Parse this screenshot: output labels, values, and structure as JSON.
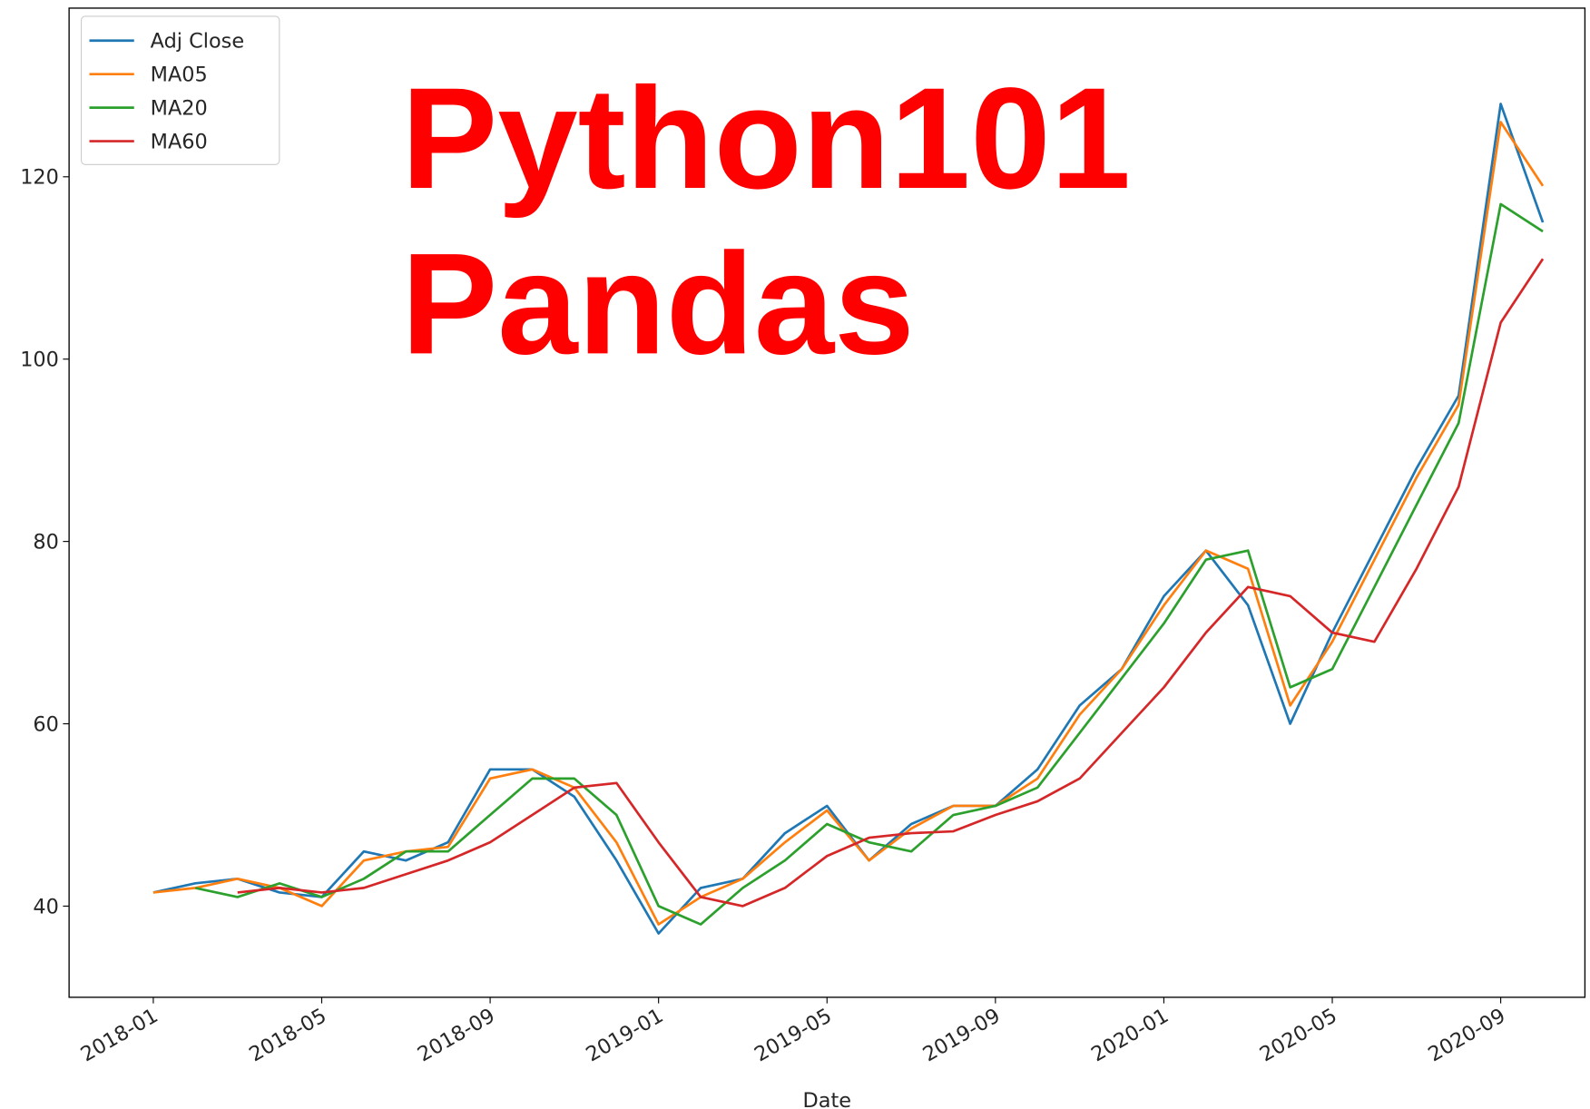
{
  "chart_data": {
    "type": "line",
    "annotations": [
      "Python101",
      "Pandas"
    ],
    "x_label": "Date",
    "x": [
      "2018-01",
      "2018-02",
      "2018-03",
      "2018-04",
      "2018-05",
      "2018-06",
      "2018-07",
      "2018-08",
      "2018-09",
      "2018-10",
      "2018-11",
      "2018-12",
      "2019-01",
      "2019-02",
      "2019-03",
      "2019-04",
      "2019-05",
      "2019-06",
      "2019-07",
      "2019-08",
      "2019-09",
      "2019-10",
      "2019-11",
      "2019-12",
      "2020-01",
      "2020-02",
      "2020-03",
      "2020-04",
      "2020-05",
      "2020-06",
      "2020-07",
      "2020-08",
      "2020-09",
      "2020-10"
    ],
    "series": [
      {
        "name": "Adj Close",
        "color": "#1f77b4",
        "values": [
          41.5,
          42.5,
          43,
          41.5,
          41,
          46,
          45,
          47,
          55,
          55,
          52,
          45,
          37,
          42,
          43,
          48,
          51,
          45,
          49,
          51,
          51,
          55,
          62,
          66,
          74,
          79,
          73,
          60,
          70,
          79,
          88,
          96,
          128,
          115
        ]
      },
      {
        "name": "MA05",
        "color": "#ff7f0e",
        "values": [
          41.5,
          42,
          43,
          42,
          40,
          45,
          46,
          46.5,
          54,
          55,
          53,
          47,
          38,
          41,
          43,
          47,
          50.5,
          45,
          48.5,
          51,
          51,
          54,
          61,
          66,
          73,
          79,
          77,
          62,
          69,
          78,
          87,
          95,
          126,
          119
        ]
      },
      {
        "name": "MA20",
        "color": "#2ca02c",
        "values": [
          null,
          42,
          41,
          42.5,
          41,
          43,
          46,
          46,
          50,
          54,
          54,
          50,
          40,
          38,
          42,
          45,
          49,
          47,
          46,
          50,
          51,
          53,
          59,
          65,
          71,
          78,
          79,
          64,
          66,
          75,
          84,
          93,
          117,
          114
        ]
      },
      {
        "name": "MA60",
        "color": "#d62728",
        "values": [
          null,
          null,
          41.5,
          42,
          41.5,
          42,
          43.5,
          45,
          47,
          50,
          53,
          53.5,
          47,
          41,
          40,
          42,
          45.5,
          47.5,
          48,
          48.2,
          50,
          51.5,
          54,
          59,
          64,
          70,
          75,
          74,
          70,
          69,
          77,
          86,
          104,
          111
        ]
      }
    ],
    "xlim": [
      "2017-11",
      "2020-11"
    ],
    "xticks": [
      "2018-01",
      "2018-05",
      "2018-09",
      "2019-01",
      "2019-05",
      "2019-09",
      "2020-01",
      "2020-05",
      "2020-09"
    ],
    "ylim": [
      30,
      138.5
    ],
    "yticks": [
      40,
      60,
      80,
      100,
      120
    ],
    "legend": "upper left"
  }
}
